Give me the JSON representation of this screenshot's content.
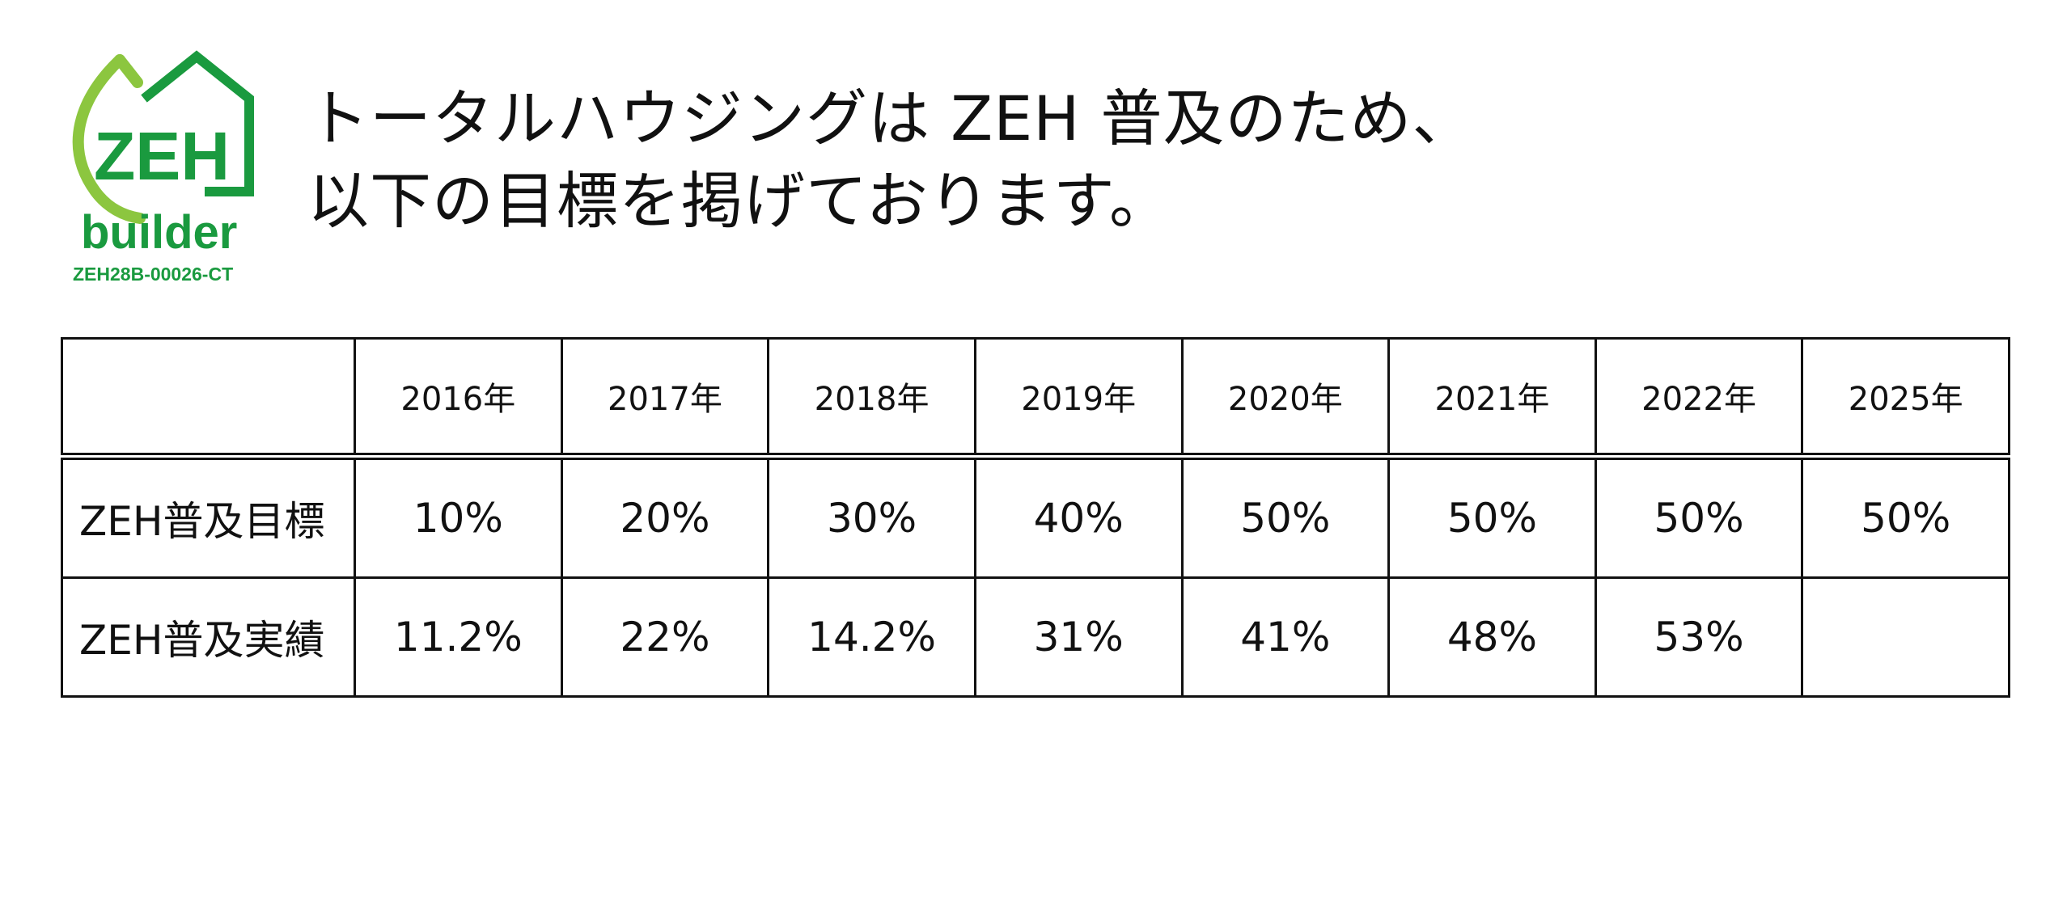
{
  "logo": {
    "wordmark": "ZEH",
    "sub": "builder",
    "code": "ZEH28B-00026-CT",
    "colors": {
      "green": "#1a9a3f",
      "lime": "#8cc63f"
    }
  },
  "heading": {
    "line1": "トータルハウジングは ZEH 普及のため、",
    "line2": "以下の目標を掲げております。"
  },
  "table": {
    "corner": "",
    "years": [
      "2016年",
      "2017年",
      "2018年",
      "2019年",
      "2020年",
      "2021年",
      "2022年",
      "2025年"
    ],
    "rows": [
      {
        "label": "ZEH普及目標",
        "values": [
          "10%",
          "20%",
          "30%",
          "40%",
          "50%",
          "50%",
          "50%",
          "50%"
        ]
      },
      {
        "label": "ZEH普及実績",
        "values": [
          "11.2%",
          "22%",
          "14.2%",
          "31%",
          "41%",
          "48%",
          "53%",
          ""
        ]
      }
    ]
  }
}
